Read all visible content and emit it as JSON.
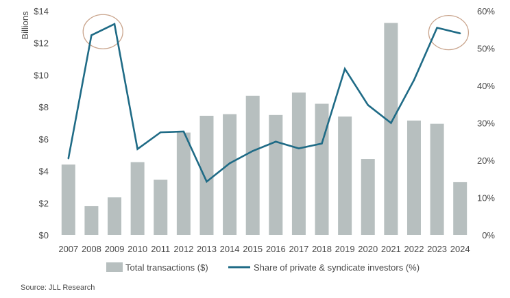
{
  "chart_data": {
    "type": "bar",
    "categories": [
      "2007",
      "2008",
      "2009",
      "2010",
      "2011",
      "2012",
      "2013",
      "2014",
      "2015",
      "2016",
      "2017",
      "2018",
      "2019",
      "2020",
      "2021",
      "2022",
      "2023",
      "2024"
    ],
    "series": [
      {
        "name": "Total transactions ($)",
        "type": "bar",
        "axis": "left",
        "color": "#b7bfbf",
        "values": [
          4.4,
          1.8,
          2.35,
          4.55,
          3.45,
          6.4,
          7.45,
          7.55,
          8.7,
          7.5,
          8.9,
          8.2,
          7.4,
          4.75,
          13.25,
          7.15,
          6.95,
          3.3
        ]
      },
      {
        "name": "Share of private & syndicate investors (%)",
        "type": "line",
        "axis": "right",
        "color": "#1f6b86",
        "values": [
          20.5,
          53.5,
          56.5,
          23.0,
          27.5,
          27.7,
          14.3,
          19.2,
          22.5,
          25.0,
          23.2,
          24.5,
          44.5,
          34.8,
          30.0,
          41.5,
          55.5,
          54.0
        ]
      }
    ],
    "ylabel": "Billions",
    "ylim": [
      0,
      14
    ],
    "y_ticks": [
      "$0",
      "$2",
      "$4",
      "$6",
      "$8",
      "$10",
      "$12",
      "$14"
    ],
    "y2lim": [
      0,
      60
    ],
    "y2_ticks": [
      "0%",
      "10%",
      "20%",
      "30%",
      "40%",
      "50%",
      "60%"
    ],
    "grid": false,
    "legend_position": "bottom",
    "highlight_color": "#c9a48c",
    "highlights": [
      {
        "categories": [
          "2008",
          "2009"
        ]
      },
      {
        "categories": [
          "2023",
          "2024"
        ]
      }
    ],
    "source": "Source: JLL Research"
  }
}
